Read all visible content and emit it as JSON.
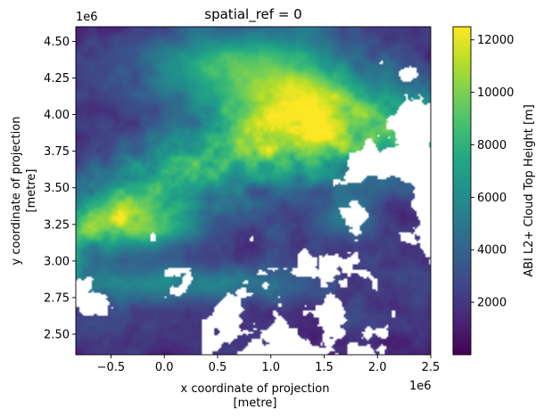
{
  "chart_data": {
    "type": "heatmap",
    "title": "spatial_ref = 0",
    "xlabel_line1": "x coordinate of projection",
    "xlabel_line2": "[metre]",
    "ylabel_line1": "y coordinate of projection",
    "ylabel_line2": "[metre]",
    "x_offset_label": "1e6",
    "y_offset_label": "1e6",
    "xlim": [
      -0.83,
      2.5
    ],
    "ylim": [
      2.36,
      4.6
    ],
    "x_ticks": [
      -0.5,
      0.0,
      0.5,
      1.0,
      1.5,
      2.0,
      2.5
    ],
    "x_tick_labels": [
      "−0.5",
      "0.0",
      "0.5",
      "1.0",
      "1.5",
      "2.0",
      "2.5"
    ],
    "y_ticks": [
      2.5,
      2.75,
      3.0,
      3.25,
      3.5,
      3.75,
      4.0,
      4.25,
      4.5
    ],
    "y_tick_labels": [
      "2.50",
      "2.75",
      "3.00",
      "3.25",
      "3.50",
      "3.75",
      "4.00",
      "4.25",
      "4.50"
    ],
    "colorbar": {
      "label": "ABI L2+ Cloud Top Height [m]",
      "colormap": "viridis",
      "range": [
        0,
        12500
      ],
      "ticks": [
        2000,
        4000,
        6000,
        8000,
        10000,
        12000
      ],
      "tick_labels": [
        "2000",
        "4000",
        "6000",
        "8000",
        "10000",
        "12000"
      ]
    },
    "missing_color": "#ffffff",
    "grid": false
  }
}
